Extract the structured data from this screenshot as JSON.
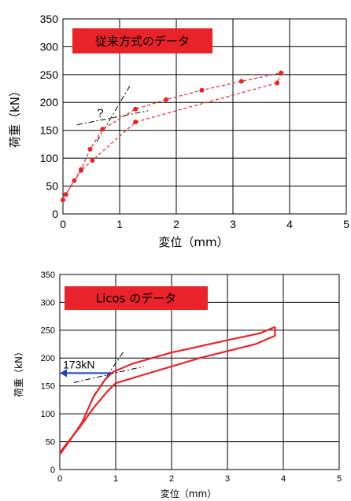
{
  "colors": {
    "series": "#e8242a",
    "title_box": "#e8242a",
    "title_text": "#ffffff",
    "tangent": "#000000",
    "arrow": "#1f3fbf"
  },
  "chart_data": [
    {
      "type": "scatter",
      "title": "従来方式のデータ",
      "xlabel": "変位（mm）",
      "ylabel": "荷重（kN）",
      "xlim": [
        0,
        5
      ],
      "ylim": [
        0,
        350
      ],
      "xticks": [
        "0",
        "1",
        "2",
        "3",
        "4",
        "5"
      ],
      "yticks": [
        "0",
        "50",
        "100",
        "150",
        "200",
        "250",
        "300",
        "350"
      ],
      "grid": true,
      "annotation": "?",
      "series": [
        {
          "style": "dashed-marker",
          "loading": [
            [
              0,
              25
            ],
            [
              0.05,
              35
            ],
            [
              0.2,
              60
            ],
            [
              0.32,
              80
            ],
            [
              0.48,
              116
            ],
            [
              0.7,
              152
            ],
            [
              1.28,
              188
            ],
            [
              1.82,
              205
            ],
            [
              2.45,
              222
            ],
            [
              3.15,
              238
            ],
            [
              3.85,
              253
            ]
          ],
          "unloading": [
            [
              3.85,
              253
            ],
            [
              3.78,
              235
            ],
            [
              1.28,
              165
            ],
            [
              0.52,
              96
            ],
            [
              0.32,
              78
            ],
            [
              0.05,
              35
            ]
          ]
        }
      ],
      "tangents": [
        [
          [
            0.25,
            160
          ],
          [
            1.5,
            185
          ]
        ],
        [
          [
            0.6,
            130
          ],
          [
            1.2,
            233
          ]
        ]
      ]
    },
    {
      "type": "line",
      "title": "Licos のデータ",
      "xlabel": "変位（mm）",
      "ylabel": "荷重（kN）",
      "xlim": [
        0,
        5
      ],
      "ylim": [
        0,
        350
      ],
      "xticks": [
        "0",
        "1",
        "2",
        "3",
        "4",
        "5"
      ],
      "yticks": [
        "0",
        "50",
        "100",
        "150",
        "200",
        "250",
        "300",
        "350"
      ],
      "grid": true,
      "annotation": "173kN",
      "arrow_value": 173,
      "series": [
        {
          "style": "solid",
          "loading": [
            [
              0,
              27
            ],
            [
              0.2,
              55
            ],
            [
              0.4,
              85
            ],
            [
              0.6,
              130
            ],
            [
              0.8,
              160
            ],
            [
              0.95,
              175
            ],
            [
              1.3,
              190
            ],
            [
              2.0,
              210
            ],
            [
              3.0,
              232
            ],
            [
              3.6,
              245
            ],
            [
              3.85,
              256
            ]
          ],
          "unloading": [
            [
              3.85,
              256
            ],
            [
              3.85,
              240
            ],
            [
              3.5,
              225
            ],
            [
              2.5,
              200
            ],
            [
              1.5,
              170
            ],
            [
              1.0,
              155
            ],
            [
              0.85,
              140
            ],
            [
              0.6,
              110
            ],
            [
              0.35,
              75
            ],
            [
              0.15,
              50
            ],
            [
              0,
              30
            ]
          ]
        }
      ],
      "tangents": [
        [
          [
            0.25,
            156
          ],
          [
            1.5,
            185
          ]
        ],
        [
          [
            0.6,
            132
          ],
          [
            1.15,
            213
          ]
        ]
      ]
    }
  ]
}
